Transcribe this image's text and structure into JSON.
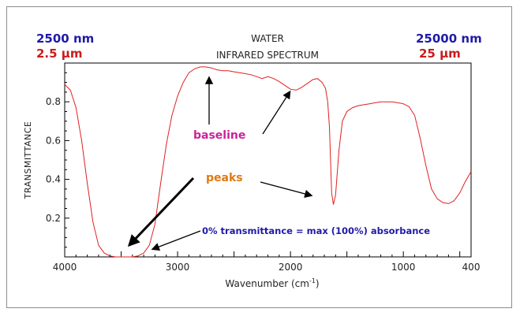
{
  "header": {
    "left_nm": "2500 nm",
    "left_um": "2.5 µm",
    "right_nm": "25000 nm",
    "right_um": "25 µm",
    "title_line1": "WATER",
    "title_line2": "INFRARED SPECTRUM"
  },
  "colors": {
    "curve": "#e02020",
    "nm_text": "#1f1aa8",
    "um_text": "#cc1b1b",
    "baseline_label": "#cc2299",
    "peaks_label": "#e07a10",
    "note_label": "#1f1aa8"
  },
  "annotations": {
    "baseline": "baseline",
    "peaks": "peaks",
    "note": "0% transmittance = max (100%) absorbance"
  },
  "chart_data": {
    "type": "line",
    "title": "WATER INFRARED SPECTRUM",
    "xlabel": "Wavenumber (cm-1)",
    "ylabel": "TRANSMITTANCE",
    "xlim": [
      4000,
      400
    ],
    "ylim": [
      0,
      1
    ],
    "x_reversed": true,
    "grid": false,
    "x_ticks": [
      4000,
      3000,
      2000,
      1000,
      400
    ],
    "y_ticks": [
      0.2,
      0.4,
      0.6,
      0.8
    ],
    "series": [
      {
        "x": [
          4000,
          3950,
          3900,
          3850,
          3800,
          3750,
          3700,
          3650,
          3600,
          3550,
          3500,
          3450,
          3400,
          3350,
          3300,
          3250,
          3200,
          3150,
          3100,
          3050,
          3000,
          2950,
          2900,
          2850,
          2800,
          2750,
          2700,
          2650,
          2600,
          2550,
          2500,
          2450,
          2400,
          2350,
          2300,
          2250,
          2200,
          2150,
          2100,
          2050,
          2000,
          1950,
          1900,
          1850,
          1800,
          1760,
          1720,
          1690,
          1670,
          1655,
          1645,
          1635,
          1620,
          1600,
          1570,
          1540,
          1500,
          1450,
          1400,
          1350,
          1300,
          1250,
          1200,
          1150,
          1100,
          1050,
          1000,
          950,
          900,
          850,
          800,
          750,
          700,
          650,
          600,
          550,
          500,
          450,
          400
        ],
        "y": [
          0.89,
          0.86,
          0.77,
          0.6,
          0.38,
          0.18,
          0.06,
          0.02,
          0.005,
          0.0,
          0.0,
          0.0,
          0.0,
          0.005,
          0.02,
          0.06,
          0.17,
          0.38,
          0.58,
          0.73,
          0.83,
          0.9,
          0.95,
          0.97,
          0.98,
          0.98,
          0.975,
          0.965,
          0.96,
          0.96,
          0.955,
          0.95,
          0.945,
          0.94,
          0.93,
          0.92,
          0.93,
          0.92,
          0.905,
          0.885,
          0.865,
          0.86,
          0.875,
          0.895,
          0.915,
          0.92,
          0.9,
          0.87,
          0.8,
          0.67,
          0.5,
          0.33,
          0.27,
          0.32,
          0.55,
          0.7,
          0.75,
          0.77,
          0.78,
          0.785,
          0.79,
          0.795,
          0.8,
          0.8,
          0.8,
          0.795,
          0.79,
          0.775,
          0.73,
          0.61,
          0.47,
          0.35,
          0.3,
          0.28,
          0.275,
          0.29,
          0.33,
          0.39,
          0.44
        ]
      }
    ]
  }
}
